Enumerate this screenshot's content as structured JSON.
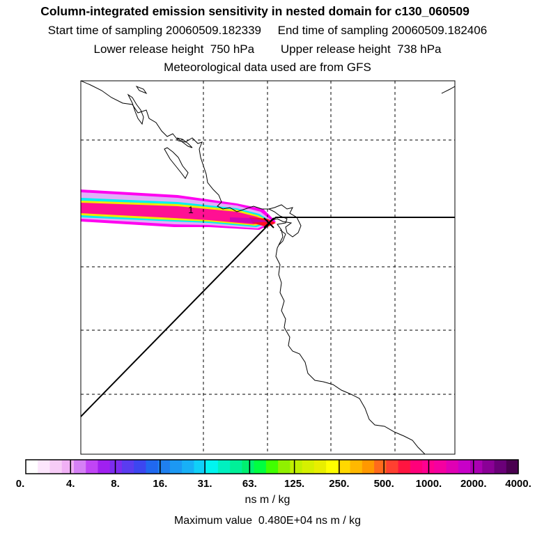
{
  "header": {
    "title": "Column-integrated emission sensitivity in nested domain for c130_060509",
    "sampling_line": "Start time of sampling 20060509.182339     End time of sampling 20060509.182406",
    "release_line": "Lower release height  750 hPa        Upper release height  738 hPa",
    "met_line": "Meteorological data used are from GFS"
  },
  "map": {
    "trajectory_label": "1"
  },
  "colorbar": {
    "tick_labels": [
      "0.",
      "4.",
      "8.",
      "16.",
      "31.",
      "63.",
      "125.",
      "250.",
      "500.",
      "1000.",
      "2000.",
      "4000."
    ],
    "colors": [
      "#ffffff",
      "#fce6fc",
      "#f7ccf7",
      "#f0b0f5",
      "#d580f5",
      "#c045f5",
      "#a020f0",
      "#7c2cf0",
      "#5a3cf0",
      "#3c46f0",
      "#2068f0",
      "#1f80f0",
      "#1c98f3",
      "#18b0f6",
      "#10d0f8",
      "#00f5f0",
      "#00f0c0",
      "#00f098",
      "#00f070",
      "#00ff40",
      "#40ff00",
      "#90f000",
      "#c0f000",
      "#d5f000",
      "#e8ee00",
      "#ffff00",
      "#ffd800",
      "#ffb800",
      "#ff9800",
      "#ff6a1c",
      "#ff4030",
      "#ff1540",
      "#ff007a",
      "#ff0090",
      "#f500a0",
      "#e000b4",
      "#c800c8",
      "#aa00b2",
      "#8a0096",
      "#6a0078",
      "#4a0050"
    ],
    "units": "ns m / kg",
    "max_value_text": "Maximum value  0.480E+04 ns m / kg"
  },
  "colors": {
    "plume_outer": "#ff00f0",
    "plume_mid": "#00f0f0",
    "plume_core": "#ff1093",
    "coast": "#000000"
  }
}
